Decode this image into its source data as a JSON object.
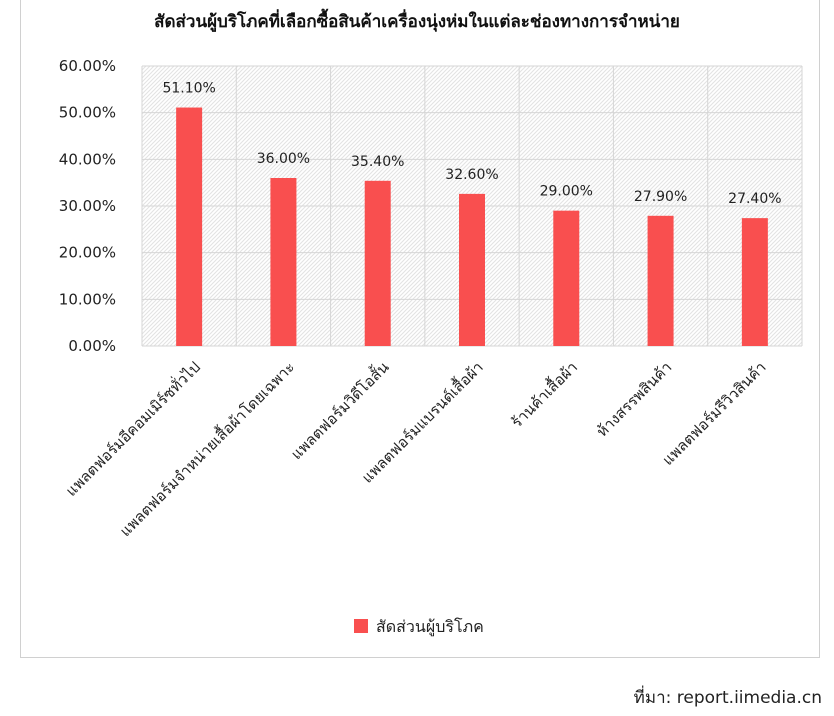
{
  "chart_data": {
    "type": "bar",
    "title": "สัดส่วนผู้บริโภคที่เลือกซื้อสินค้าเครื่องนุ่งห่มในแต่ละช่องทางการจำหน่าย",
    "categories": [
      "แพลตฟอร์มอีคอมเมิร์ซทั่วไป",
      "แพลตฟอร์มจำหน่ายเสื้อผ้าโดยเฉพาะ",
      "แพลตฟอร์มวิดีโอสั้น",
      "แพลตฟอร์มแบรนด์เสื้อผ้า",
      "ร้านค้าเสื้อผ้า",
      "ห้างสรรพสินค้า",
      "แพลตฟอร์มรีวิวสินค้า"
    ],
    "series": [
      {
        "name": "สัดส่วนผู้บริโภค",
        "values": [
          51.1,
          36.0,
          35.4,
          32.6,
          29.0,
          27.9,
          27.4
        ],
        "color": "#f94f4f"
      }
    ],
    "data_labels": [
      "51.10%",
      "36.00%",
      "35.40%",
      "32.60%",
      "29.00%",
      "27.90%",
      "27.40%"
    ],
    "ylim": [
      0,
      60
    ],
    "yticks": [
      "0.00%",
      "10.00%",
      "20.00%",
      "30.00%",
      "40.00%",
      "50.00%",
      "60.00%"
    ],
    "grid": true,
    "legend": "bottom"
  },
  "source_note": "ที่มา: report.iimedia.cn"
}
